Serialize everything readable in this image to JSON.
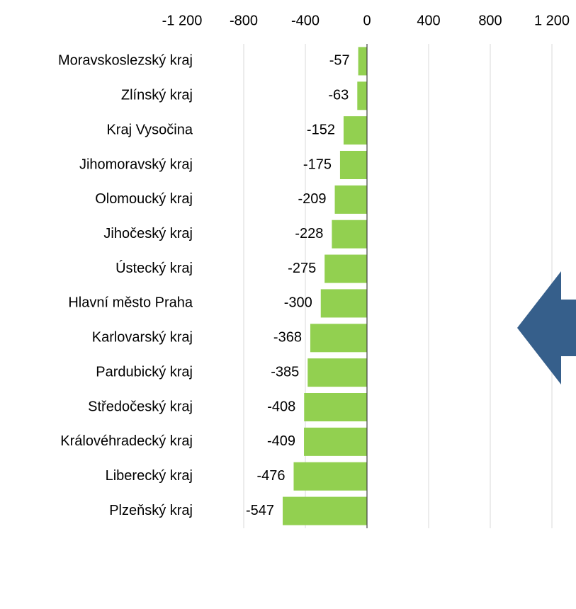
{
  "chart_data": {
    "type": "bar",
    "orientation": "horizontal",
    "categories": [
      "Moravskoslezský kraj",
      "Zlínský kraj",
      "Kraj Vysočina",
      "Jihomoravský kraj",
      "Olomoucký kraj",
      "Jihočeský kraj",
      "Ústecký kraj",
      "Hlavní město Praha",
      "Karlovarský kraj",
      "Pardubický kraj",
      "Středočeský kraj",
      "Královéhradecký kraj",
      "Liberecký kraj",
      "Plzeňský kraj"
    ],
    "values": [
      -57,
      -63,
      -152,
      -175,
      -209,
      -228,
      -275,
      -300,
      -368,
      -385,
      -408,
      -409,
      -476,
      -547
    ],
    "color": "#92d050",
    "xlim": [
      -1200,
      1200
    ],
    "xticks": [
      {
        "value": -1200,
        "label": "-1 200"
      },
      -800,
      -400,
      0,
      400,
      800,
      {
        "value": 1200,
        "label": "1 200"
      }
    ],
    "grid": true
  }
}
